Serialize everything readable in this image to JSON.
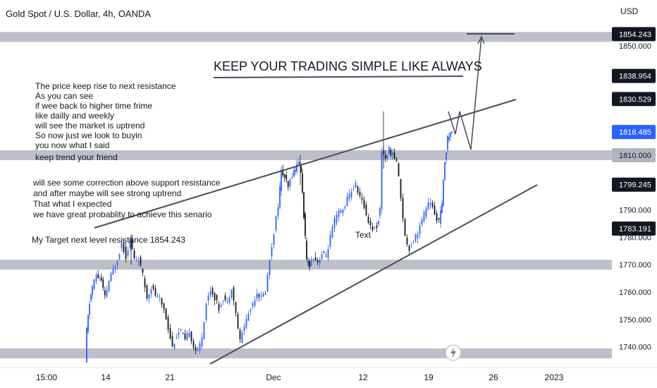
{
  "header": {
    "title": "Gold Spot / U.S. Dollar, 4h, OANDA",
    "currency": "USD"
  },
  "colors": {
    "up": "#2962ff",
    "down": "#131722",
    "zone": "#b2b5be",
    "line": "#4a4d57",
    "current": "#2962ff"
  },
  "chart_data": {
    "type": "candlestick",
    "ylim": [
      1732,
      1860
    ],
    "y_ticks": [
      "1740.000",
      "1750.000",
      "1760.000",
      "1770.000",
      "1780.000",
      "1790.000",
      "1800.000",
      "1810.000",
      "1820.000",
      "1830.000",
      "1840.000",
      "1850.000"
    ],
    "x_ticks": [
      "15:00",
      "14",
      "21",
      "Dec",
      "12",
      "19",
      "26",
      "2023"
    ],
    "price_labels": [
      {
        "text": "1854.243",
        "value": 1854.243,
        "style": "dark"
      },
      {
        "text": "1838.954",
        "value": 1838.954,
        "style": "dark"
      },
      {
        "text": "1830.529",
        "value": 1830.529,
        "style": "dark"
      },
      {
        "text": "1818.485",
        "value": 1818.485,
        "style": "current"
      },
      {
        "text": "1810.000",
        "value": 1810.0,
        "style": "zone"
      },
      {
        "text": "1799.245",
        "value": 1799.245,
        "style": "dark"
      },
      {
        "text": "1783.191",
        "value": 1783.191,
        "style": "dark"
      }
    ],
    "zones": [
      1853.2,
      1810.0,
      1770.0,
      1737.6
    ],
    "price_path": [
      [
        122,
        1734
      ],
      [
        124,
        1746
      ],
      [
        128,
        1756
      ],
      [
        132,
        1762
      ],
      [
        138,
        1766
      ],
      [
        145,
        1764
      ],
      [
        150,
        1758
      ],
      [
        156,
        1764
      ],
      [
        162,
        1768
      ],
      [
        168,
        1772
      ],
      [
        174,
        1778
      ],
      [
        180,
        1773
      ],
      [
        186,
        1779
      ],
      [
        192,
        1772
      ],
      [
        198,
        1772
      ],
      [
        204,
        1766
      ],
      [
        210,
        1758
      ],
      [
        216,
        1762
      ],
      [
        222,
        1759
      ],
      [
        228,
        1757
      ],
      [
        234,
        1754
      ],
      [
        240,
        1747
      ],
      [
        246,
        1740
      ],
      [
        252,
        1744
      ],
      [
        258,
        1746
      ],
      [
        264,
        1742
      ],
      [
        270,
        1746
      ],
      [
        276,
        1740
      ],
      [
        282,
        1738
      ],
      [
        288,
        1744
      ],
      [
        294,
        1756
      ],
      [
        300,
        1761
      ],
      [
        306,
        1758
      ],
      [
        312,
        1754
      ],
      [
        318,
        1758
      ],
      [
        324,
        1756
      ],
      [
        330,
        1762
      ],
      [
        336,
        1752
      ],
      [
        342,
        1742
      ],
      [
        348,
        1748
      ],
      [
        354,
        1752
      ],
      [
        360,
        1756
      ],
      [
        366,
        1760
      ],
      [
        372,
        1758
      ],
      [
        378,
        1760
      ],
      [
        384,
        1772
      ],
      [
        390,
        1782
      ],
      [
        396,
        1792
      ],
      [
        400,
        1804
      ],
      [
        405,
        1802
      ],
      [
        410,
        1798
      ],
      [
        416,
        1803
      ],
      [
        420,
        1805
      ],
      [
        424,
        1808
      ],
      [
        428,
        1804
      ],
      [
        432,
        1788
      ],
      [
        436,
        1771
      ],
      [
        440,
        1770
      ],
      [
        446,
        1773
      ],
      [
        452,
        1771
      ],
      [
        458,
        1774
      ],
      [
        464,
        1773
      ],
      [
        470,
        1780
      ],
      [
        476,
        1786
      ],
      [
        482,
        1789
      ],
      [
        488,
        1790
      ],
      [
        494,
        1794
      ],
      [
        500,
        1797
      ],
      [
        506,
        1799
      ],
      [
        512,
        1795
      ],
      [
        518,
        1791
      ],
      [
        524,
        1786
      ],
      [
        530,
        1783
      ],
      [
        536,
        1784
      ],
      [
        540,
        1790
      ],
      [
        543,
        1812
      ],
      [
        548,
        1809
      ],
      [
        553,
        1812
      ],
      [
        558,
        1810
      ],
      [
        564,
        1808
      ],
      [
        570,
        1795
      ],
      [
        576,
        1780
      ],
      [
        582,
        1776
      ],
      [
        588,
        1779
      ],
      [
        594,
        1782
      ],
      [
        600,
        1786
      ],
      [
        606,
        1791
      ],
      [
        612,
        1793
      ],
      [
        618,
        1788
      ],
      [
        624,
        1786
      ],
      [
        628,
        1792
      ],
      [
        632,
        1808
      ],
      [
        636,
        1816
      ],
      [
        640,
        1818
      ],
      [
        642,
        1818.485
      ]
    ],
    "annotations": {
      "headline": "KEEP YOUR TRADING SIMPLE LIKE ALWAYS",
      "note1": [
        "The price keep rise to next resistance",
        "As you can see",
        "if wee back to higher time frime",
        "like dailly and weekly",
        "will see the market is uptrend",
        "So now just we look to buyin",
        "you now what I said",
        "keep trend your friend"
      ],
      "note2": [
        "will see some correction above support resistance",
        "and after maybe will see strong uptrend",
        "That what I expected",
        "we have great probablity to achieve this senario"
      ],
      "target": "My Target next level resistance 1854.243",
      "small_label": "Text"
    }
  }
}
